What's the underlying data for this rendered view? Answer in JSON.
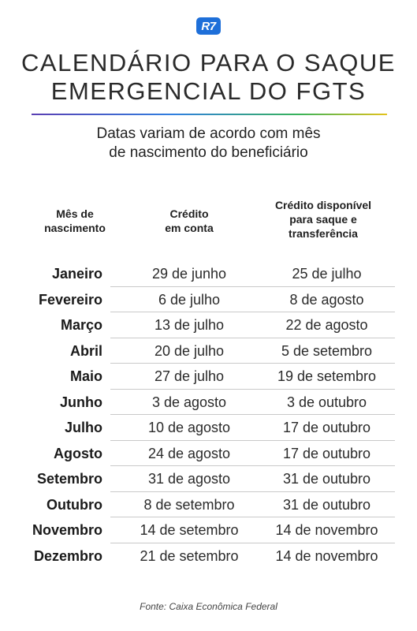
{
  "logo": "R7",
  "title_lines": [
    "CALENDÁRIO PARA O SAQUE",
    "EMERGENCIAL DO FGTS"
  ],
  "subtitle_lines": [
    "Datas variam de acordo com mês",
    "de nascimento do beneficiário"
  ],
  "headers": {
    "month": [
      "Mês de",
      "nascimento"
    ],
    "credit": [
      "Crédito",
      "em conta"
    ],
    "available": [
      "Crédito disponível",
      "para saque e",
      "transferência"
    ]
  },
  "rows": [
    {
      "month": "Janeiro",
      "credit": "29 de junho",
      "available": "25 de julho"
    },
    {
      "month": "Fevereiro",
      "credit": "6 de julho",
      "available": "8 de agosto"
    },
    {
      "month": "Março",
      "credit": "13 de julho",
      "available": "22 de agosto"
    },
    {
      "month": "Abril",
      "credit": "20 de julho",
      "available": "5 de setembro"
    },
    {
      "month": "Maio",
      "credit": "27 de julho",
      "available": "19 de setembro"
    },
    {
      "month": "Junho",
      "credit": "3 de agosto",
      "available": "3 de outubro"
    },
    {
      "month": "Julho",
      "credit": "10 de agosto",
      "available": "17 de outubro"
    },
    {
      "month": "Agosto",
      "credit": "24 de agosto",
      "available": "17 de outubro"
    },
    {
      "month": "Setembro",
      "credit": "31 de agosto",
      "available": "31 de outubro"
    },
    {
      "month": "Outubro",
      "credit": "8 de setembro",
      "available": "31 de outubro"
    },
    {
      "month": "Novembro",
      "credit": "14 de setembro",
      "available": "14 de novembro"
    },
    {
      "month": "Dezembro",
      "credit": "21 de setembro",
      "available": "14 de novembro"
    }
  ],
  "source": "Fonte: Caixa Econômica Federal",
  "colors": {
    "logo": "#1e6fd9",
    "rule_gradient": [
      "#5a3fb3",
      "#2f7fe0",
      "#37b35a",
      "#e3c21b"
    ]
  }
}
